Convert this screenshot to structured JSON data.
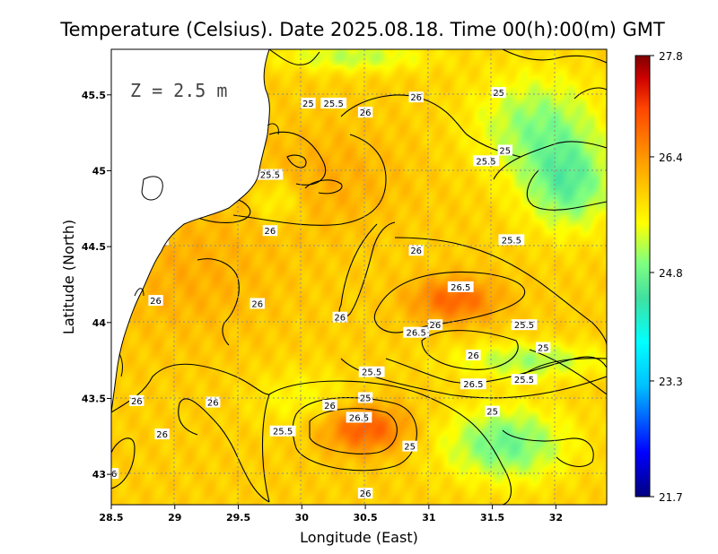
{
  "chart_data": {
    "type": "heatmap",
    "title": "Temperature (Celsius). Date 2025.08.18. Time 00(h):00(m)  GMT",
    "depth_label": "Z = 2.5 m",
    "xlabel": "Longitude (East)",
    "ylabel": "Latitude (North)",
    "xlim": [
      28.5,
      32.4
    ],
    "ylim": [
      42.8,
      45.8
    ],
    "x_ticks": [
      {
        "value": 28.5,
        "label": "28.5"
      },
      {
        "value": 29,
        "label": "29"
      },
      {
        "value": 29.5,
        "label": "29.5"
      },
      {
        "value": 30,
        "label": "30"
      },
      {
        "value": 30.5,
        "label": "30.5"
      },
      {
        "value": 31,
        "label": "31"
      },
      {
        "value": 31.5,
        "label": "31.5"
      },
      {
        "value": 32,
        "label": "32"
      }
    ],
    "y_ticks": [
      {
        "value": 43,
        "label": "43"
      },
      {
        "value": 43.5,
        "label": "43.5"
      },
      {
        "value": 44,
        "label": "44"
      },
      {
        "value": 44.5,
        "label": "44.5"
      },
      {
        "value": 45,
        "label": "45"
      },
      {
        "value": 45.5,
        "label": "45.5"
      }
    ],
    "grid": true,
    "colorbar": {
      "min": 21.7,
      "max": 27.8,
      "ticks": [
        {
          "value": 27.8,
          "label": "27.8"
        },
        {
          "value": 26.4,
          "label": "26.4"
        },
        {
          "value": 24.8,
          "label": "24.8"
        },
        {
          "value": 23.3,
          "label": "23.3"
        },
        {
          "value": 21.7,
          "label": "21.7"
        }
      ],
      "colormap": [
        "#000080",
        "#0000ff",
        "#00bfff",
        "#00ffff",
        "#40e0a0",
        "#80ff80",
        "#ffff00",
        "#ffa500",
        "#ff4500",
        "#cc0000",
        "#800000"
      ]
    },
    "background_temperature": 25.9,
    "field_features": [
      {
        "lon": 31.2,
        "lat": 44.15,
        "value": 26.8,
        "spread_lon": 0.35,
        "spread_lat": 0.15
      },
      {
        "lon": 30.5,
        "lat": 43.3,
        "value": 26.9,
        "spread_lon": 0.35,
        "spread_lat": 0.16
      },
      {
        "lon": 29.1,
        "lat": 44.35,
        "value": 26.2,
        "spread_lon": 0.7,
        "spread_lat": 0.45
      },
      {
        "lon": 30.2,
        "lat": 44.95,
        "value": 26.2,
        "spread_lon": 0.6,
        "spread_lat": 0.35
      },
      {
        "lon": 31.85,
        "lat": 45.3,
        "value": 25.0,
        "spread_lon": 0.5,
        "spread_lat": 0.35
      },
      {
        "lon": 32.1,
        "lat": 44.9,
        "value": 24.8,
        "spread_lon": 0.35,
        "spread_lat": 0.3
      },
      {
        "lon": 31.8,
        "lat": 43.75,
        "value": 25.1,
        "spread_lon": 0.6,
        "spread_lat": 0.12
      },
      {
        "lon": 31.6,
        "lat": 43.2,
        "value": 24.8,
        "spread_lon": 0.5,
        "spread_lat": 0.25
      },
      {
        "lon": 30.4,
        "lat": 45.75,
        "value": 25.2,
        "spread_lon": 0.6,
        "spread_lat": 0.1
      },
      {
        "lon": 29.8,
        "lat": 44.8,
        "value": 25.4,
        "spread_lon": 0.2,
        "spread_lat": 0.15
      },
      {
        "lon": 30.0,
        "lat": 43.5,
        "value": 25.5,
        "spread_lon": 0.4,
        "spread_lat": 0.2
      },
      {
        "lon": 29.65,
        "lat": 45.2,
        "value": 27.8,
        "spread_lon": 0.05,
        "spread_lat": 0.04
      }
    ],
    "contour_labels": [
      {
        "text": "25",
        "lon": 30.05,
        "lat": 45.44
      },
      {
        "text": "25.5",
        "lon": 30.25,
        "lat": 45.44
      },
      {
        "text": "26",
        "lon": 30.5,
        "lat": 45.38
      },
      {
        "text": "26",
        "lon": 30.9,
        "lat": 45.48
      },
      {
        "text": "25",
        "lon": 31.55,
        "lat": 45.51
      },
      {
        "text": "25",
        "lon": 31.6,
        "lat": 45.13
      },
      {
        "text": "25.5",
        "lon": 31.45,
        "lat": 45.06
      },
      {
        "text": "25.5",
        "lon": 29.75,
        "lat": 44.97
      },
      {
        "text": "26",
        "lon": 29.75,
        "lat": 44.6
      },
      {
        "text": "25.5",
        "lon": 28.85,
        "lat": 44.54
      },
      {
        "text": "26",
        "lon": 30.9,
        "lat": 44.47
      },
      {
        "text": "25.5",
        "lon": 31.65,
        "lat": 44.54
      },
      {
        "text": "26.5",
        "lon": 31.25,
        "lat": 44.23
      },
      {
        "text": "26",
        "lon": 28.85,
        "lat": 44.14
      },
      {
        "text": "26",
        "lon": 29.65,
        "lat": 44.12
      },
      {
        "text": "26",
        "lon": 30.3,
        "lat": 44.03
      },
      {
        "text": "26.5",
        "lon": 30.9,
        "lat": 43.93
      },
      {
        "text": "26",
        "lon": 31.05,
        "lat": 43.98
      },
      {
        "text": "25.5",
        "lon": 31.75,
        "lat": 43.98
      },
      {
        "text": "25",
        "lon": 31.9,
        "lat": 43.83
      },
      {
        "text": "26",
        "lon": 31.35,
        "lat": 43.78
      },
      {
        "text": "26.5",
        "lon": 31.35,
        "lat": 43.59
      },
      {
        "text": "25.5",
        "lon": 31.75,
        "lat": 43.62
      },
      {
        "text": "25.5",
        "lon": 30.55,
        "lat": 43.67
      },
      {
        "text": "25",
        "lon": 30.5,
        "lat": 43.5
      },
      {
        "text": "26",
        "lon": 28.7,
        "lat": 43.48
      },
      {
        "text": "26",
        "lon": 29.3,
        "lat": 43.47
      },
      {
        "text": "26",
        "lon": 30.22,
        "lat": 43.45
      },
      {
        "text": "25",
        "lon": 31.5,
        "lat": 43.41
      },
      {
        "text": "26.5",
        "lon": 30.45,
        "lat": 43.37
      },
      {
        "text": "26",
        "lon": 28.9,
        "lat": 43.26
      },
      {
        "text": "25.5",
        "lon": 29.85,
        "lat": 43.28
      },
      {
        "text": "25",
        "lon": 30.85,
        "lat": 43.18
      },
      {
        "text": "26",
        "lon": 30.5,
        "lat": 42.87
      },
      {
        "text": "26",
        "lon": 28.5,
        "lat": 43.0
      }
    ]
  }
}
